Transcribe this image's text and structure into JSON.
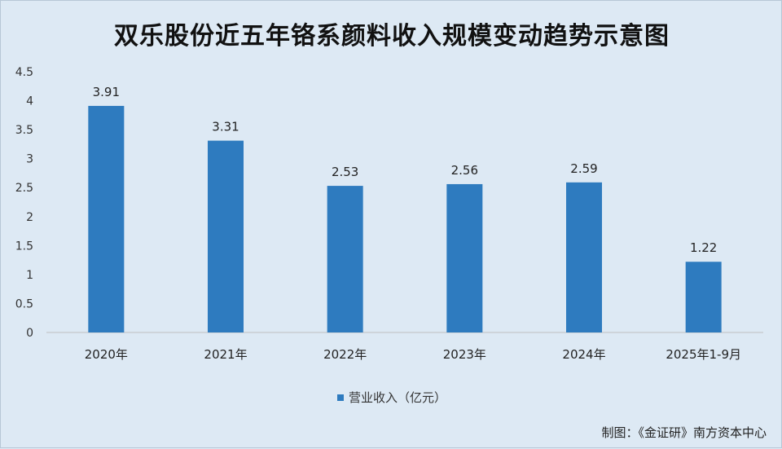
{
  "title": "双乐股份近五年铬系颜料收入规模变动趋势示意图",
  "credit": "制图：《金证研》南方资本中心",
  "legend_label": "营业收入（亿元）",
  "colors": {
    "bar": "#2e7bbf",
    "axis": "#bfbfbf",
    "background": "#dde9f4"
  },
  "chart_data": {
    "type": "bar",
    "title": "双乐股份近五年铬系颜料收入规模变动趋势示意图",
    "categories": [
      "2020年",
      "2021年",
      "2022年",
      "2023年",
      "2024年",
      "2025年1-9月"
    ],
    "series": [
      {
        "name": "营业收入（亿元）",
        "values": [
          3.91,
          3.31,
          2.53,
          2.56,
          2.59,
          1.22
        ]
      }
    ],
    "y_ticks": [
      "0",
      "0.5",
      "1",
      "1.5",
      "2",
      "2.5",
      "3",
      "3.5",
      "4",
      "4.5"
    ],
    "ylim": [
      0,
      4.5
    ],
    "xlabel": "",
    "ylabel": "",
    "grid": false,
    "legend_position": "bottom"
  }
}
